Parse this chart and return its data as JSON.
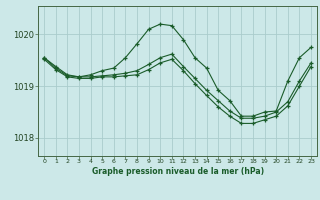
{
  "title": "Graphe pression niveau de la mer (hPa)",
  "background_color": "#cce8e8",
  "grid_color": "#aacccc",
  "line_color": "#1a5c2a",
  "xlim": [
    -0.5,
    23.5
  ],
  "ylim": [
    1017.65,
    1020.55
  ],
  "yticks": [
    1018,
    1019,
    1020
  ],
  "xticks": [
    0,
    1,
    2,
    3,
    4,
    5,
    6,
    7,
    8,
    9,
    10,
    11,
    12,
    13,
    14,
    15,
    16,
    17,
    18,
    19,
    20,
    21,
    22,
    23
  ],
  "series": [
    {
      "x": [
        0,
        1,
        2,
        3,
        4,
        5,
        6,
        7,
        8,
        9,
        10,
        11,
        12,
        13,
        14,
        15,
        16,
        17,
        18,
        19,
        20,
        21,
        22,
        23
      ],
      "y": [
        1019.55,
        1019.35,
        1019.2,
        1019.18,
        1019.22,
        1019.3,
        1019.35,
        1019.55,
        1019.82,
        1020.1,
        1020.2,
        1020.17,
        1019.9,
        1019.55,
        1019.35,
        1018.92,
        1018.72,
        1018.42,
        1018.42,
        1018.5,
        1018.52,
        1019.1,
        1019.55,
        1019.75
      ]
    },
    {
      "x": [
        0,
        1,
        2,
        3,
        4,
        5,
        6,
        7,
        8,
        9,
        10,
        11,
        12,
        13,
        14,
        15,
        16,
        17,
        18,
        19,
        20,
        21,
        22,
        23
      ],
      "y": [
        1019.55,
        1019.38,
        1019.22,
        1019.18,
        1019.18,
        1019.2,
        1019.22,
        1019.25,
        1019.3,
        1019.42,
        1019.55,
        1019.62,
        1019.38,
        1019.15,
        1018.92,
        1018.72,
        1018.52,
        1018.38,
        1018.38,
        1018.42,
        1018.5,
        1018.7,
        1019.1,
        1019.45
      ]
    },
    {
      "x": [
        0,
        1,
        2,
        3,
        4,
        5,
        6,
        7,
        8,
        9,
        10,
        11,
        12,
        13,
        14,
        15,
        16,
        17,
        18,
        19,
        20,
        21,
        22,
        23
      ],
      "y": [
        1019.52,
        1019.32,
        1019.18,
        1019.15,
        1019.15,
        1019.18,
        1019.18,
        1019.2,
        1019.22,
        1019.32,
        1019.45,
        1019.52,
        1019.3,
        1019.05,
        1018.82,
        1018.6,
        1018.42,
        1018.28,
        1018.28,
        1018.35,
        1018.42,
        1018.62,
        1019.0,
        1019.38
      ]
    }
  ]
}
